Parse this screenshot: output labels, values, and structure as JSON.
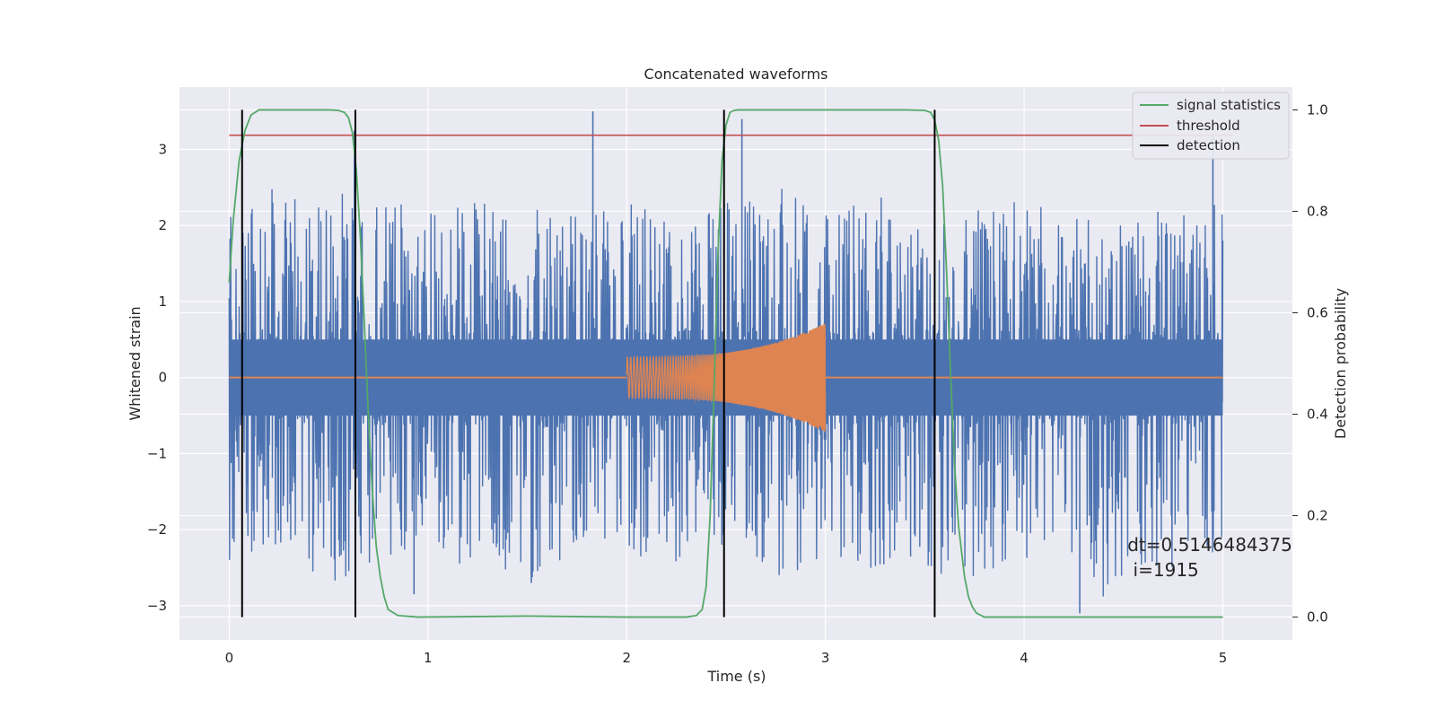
{
  "chart_data": {
    "type": "line",
    "title": "Concatenated waveforms",
    "xlabel": "Time (s)",
    "ylabel": "Whitened strain",
    "y2label": "Detection probability",
    "xlim": [
      -0.25,
      5.35
    ],
    "ylim": [
      -3.45,
      3.82
    ],
    "y2lim": [
      -0.045,
      1.045
    ],
    "xticks": [
      0,
      1,
      2,
      3,
      4,
      5
    ],
    "yticks": [
      -3,
      -2,
      -1,
      0,
      1,
      2,
      3
    ],
    "y2ticks": [
      0.0,
      0.2,
      0.4,
      0.6,
      0.8,
      1.0
    ],
    "xtick_labels": [
      "0",
      "1",
      "2",
      "3",
      "4",
      "5"
    ],
    "ytick_labels": [
      "−3",
      "−2",
      "−1",
      "0",
      "1",
      "2",
      "3"
    ],
    "y2tick_labels": [
      "0.0",
      "0.2",
      "0.4",
      "0.6",
      "0.8",
      "1.0"
    ],
    "grid": true,
    "legend_position": "top-right",
    "colors": {
      "strain": "#4c72b0",
      "injection": "#dd8452",
      "signal_statistics": "#55a868",
      "threshold": "#c44e52",
      "detection": "#000000",
      "background": "#eaeaf2"
    },
    "legend": [
      "signal statistics",
      "threshold",
      "detection"
    ],
    "series": [
      {
        "name": "signal statistics",
        "axis": "right",
        "x": [
          0.0,
          0.02,
          0.05,
          0.08,
          0.11,
          0.15,
          0.2,
          0.3,
          0.5,
          0.55,
          0.58,
          0.6,
          0.62,
          0.64,
          0.66,
          0.68,
          0.7,
          0.72,
          0.74,
          0.76,
          0.78,
          0.8,
          0.85,
          0.95,
          1.5,
          2.0,
          2.3,
          2.35,
          2.38,
          2.4,
          2.42,
          2.44,
          2.46,
          2.48,
          2.5,
          2.52,
          2.54,
          2.56,
          2.6,
          2.8,
          3.4,
          3.5,
          3.53,
          3.55,
          3.57,
          3.59,
          3.61,
          3.63,
          3.65,
          3.67,
          3.7,
          3.72,
          3.74,
          3.76,
          3.8,
          3.9,
          4.5,
          5.0
        ],
        "values": [
          0.66,
          0.78,
          0.9,
          0.96,
          0.99,
          1.0,
          1.0,
          1.0,
          1.0,
          0.999,
          0.995,
          0.985,
          0.955,
          0.88,
          0.75,
          0.58,
          0.4,
          0.25,
          0.14,
          0.08,
          0.04,
          0.015,
          0.003,
          0.0,
          0.002,
          0.0,
          0.0,
          0.003,
          0.015,
          0.06,
          0.2,
          0.45,
          0.72,
          0.9,
          0.97,
          0.995,
          0.999,
          1.0,
          1.0,
          1.0,
          1.0,
          0.999,
          0.995,
          0.98,
          0.94,
          0.85,
          0.68,
          0.48,
          0.3,
          0.18,
          0.08,
          0.04,
          0.02,
          0.008,
          0.0,
          0.0,
          0.0,
          0.0
        ]
      },
      {
        "name": "threshold",
        "axis": "right",
        "x": [
          0,
          5.05
        ],
        "values": [
          0.95,
          0.95
        ]
      },
      {
        "name": "detection",
        "axis": "right",
        "type": "vlines",
        "x": [
          0.065,
          0.635,
          2.49,
          3.55
        ],
        "ymin": 0.0,
        "ymax": 1.0
      },
      {
        "role": "whitened strain (noise)",
        "axis": "left",
        "x_range": [
          0,
          5
        ],
        "core_amplitude": 0.5,
        "envelope_hi": [
          2.4,
          2.5,
          2.3,
          2.5,
          2.4,
          2.2,
          2.3,
          2.4,
          2.2,
          2.2,
          2.3,
          2.1,
          2.3,
          2.4,
          2.5,
          2.3,
          2.4,
          2.4,
          2.1,
          2.3,
          2.3,
          2.2,
          2.1,
          2.2,
          2.4,
          2.3
        ],
        "envelope_lo": [
          -2.4,
          -2.2,
          -2.6,
          -2.7,
          -2.4,
          -2.3,
          -2.6,
          -2.7,
          -2.6,
          -2.3,
          -2.3,
          -2.5,
          -2.2,
          -2.3,
          -2.7,
          -2.3,
          -2.6,
          -2.3,
          -2.7,
          -2.6,
          -2.6,
          -2.3,
          -2.9,
          -2.5,
          -2.6,
          -2.2
        ],
        "spikes": [
          {
            "x": 0.63,
            "y": 3.25
          },
          {
            "x": 1.83,
            "y": 3.5
          },
          {
            "x": 2.58,
            "y": 3.4
          },
          {
            "x": 4.95,
            "y": 3.2
          },
          {
            "x": 4.28,
            "y": -3.1
          },
          {
            "x": 1.52,
            "y": -2.7
          },
          {
            "x": 0.93,
            "y": -2.85
          },
          {
            "x": 3.55,
            "y": -3.0
          }
        ]
      },
      {
        "role": "injected chirp",
        "axis": "left",
        "x_range": [
          2.0,
          3.0
        ],
        "amplitude_start": 0.27,
        "amplitude_end": 0.72,
        "frequency_start_hz": 60,
        "frequency_end_hz": 450,
        "flat_regions": [
          [
            0,
            2.0
          ],
          [
            3.0,
            5.0
          ]
        ]
      }
    ],
    "annotation": {
      "line1": "dt=0.5146484375",
      "line2": " i=1915",
      "x": 4.52,
      "y": -2.28
    }
  }
}
